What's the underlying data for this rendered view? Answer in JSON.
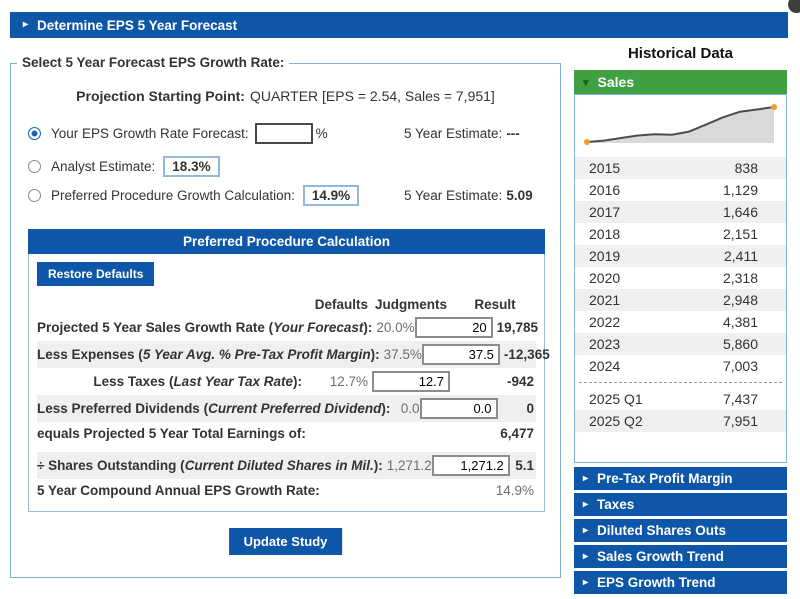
{
  "icons": {
    "caret_right": "▸",
    "caret_down": "▾"
  },
  "colors": {
    "blue": "#0e57a8",
    "green": "#3fa142",
    "light_border": "#82afd6",
    "stripe": "#efefef",
    "spark_line": "#4d4d4d",
    "spark_fill": "#d9d9d9",
    "spark_dot": "#f59b25"
  },
  "header": {
    "title": "Determine EPS 5 Year Forecast"
  },
  "form": {
    "legend": "Select 5 Year Forecast EPS Growth Rate:",
    "projection_label": "Projection Starting Point:",
    "projection_value": "QUARTER [EPS = 2.54, Sales = 7,951]",
    "options": {
      "your_forecast": {
        "label": "Your EPS Growth Rate Forecast:",
        "input_value": "",
        "suffix": "%",
        "estimate_label": "5 Year Estimate:",
        "estimate_value": "---"
      },
      "analyst": {
        "label": "Analyst Estimate:",
        "value": "18.3%"
      },
      "preferred": {
        "label": "Preferred Procedure Growth Calculation:",
        "value": "14.9%",
        "estimate_label": "5 Year Estimate:",
        "estimate_value": "5.09"
      }
    }
  },
  "calc": {
    "title": "Preferred Procedure Calculation",
    "restore_button": "Restore Defaults",
    "columns": {
      "defaults": "Defaults",
      "judgments": "Judgments",
      "result": "Result"
    },
    "rows": [
      {
        "label": "Projected 5 Year Sales Growth Rate (",
        "italic": "Your Forecast",
        "suffix": "):",
        "default": "20.0%",
        "judgment": "20",
        "result": "19,785"
      },
      {
        "label": "Less Expenses (",
        "italic": "5 Year Avg. % Pre-Tax Profit Margin",
        "suffix": "):",
        "default": "37.5%",
        "judgment": "37.5",
        "result": "-12,365"
      },
      {
        "label": "Less Taxes (",
        "italic": "Last Year Tax Rate",
        "suffix": "):",
        "default": "12.7%",
        "judgment": "12.7",
        "result": "-942"
      },
      {
        "label": "Less Preferred Dividends (",
        "italic": "Current Preferred Dividend",
        "suffix": "):",
        "default": "0.0",
        "judgment": "0.0",
        "result": "0"
      },
      {
        "label": "equals Projected 5 Year Total Earnings of:",
        "italic": "",
        "suffix": "",
        "default": "",
        "result": "6,477"
      },
      {
        "label": "÷ Shares Outstanding (",
        "italic": "Current Diluted Shares in Mil.",
        "suffix": "):",
        "default": "1,271.2",
        "judgment": "1,271.2",
        "result": "5.1"
      },
      {
        "label": "5 Year Compound Annual EPS Growth Rate:",
        "italic": "",
        "suffix": "",
        "default": "",
        "result": "14.9%"
      }
    ],
    "update_button": "Update Study"
  },
  "sidebar": {
    "title": "Historical Data",
    "sales": {
      "header": "Sales",
      "rows": [
        [
          "2015",
          "838"
        ],
        [
          "2016",
          "1,129"
        ],
        [
          "2017",
          "1,646"
        ],
        [
          "2018",
          "2,151"
        ],
        [
          "2019",
          "2,411"
        ],
        [
          "2020",
          "2,318"
        ],
        [
          "2021",
          "2,948"
        ],
        [
          "2022",
          "4,381"
        ],
        [
          "2023",
          "5,860"
        ],
        [
          "2024",
          "7,003"
        ]
      ],
      "quarters": [
        [
          "2025 Q1",
          "7,437"
        ],
        [
          "2025 Q2",
          "7,951"
        ]
      ],
      "spark_values": [
        838,
        1129,
        1646,
        2151,
        2411,
        2318,
        2948,
        4381,
        5860,
        7003,
        7437,
        7951
      ]
    },
    "accordions": [
      "Pre-Tax Profit Margin",
      "Taxes",
      "Diluted Shares Outs",
      "Sales Growth Trend",
      "EPS Growth Trend"
    ]
  }
}
